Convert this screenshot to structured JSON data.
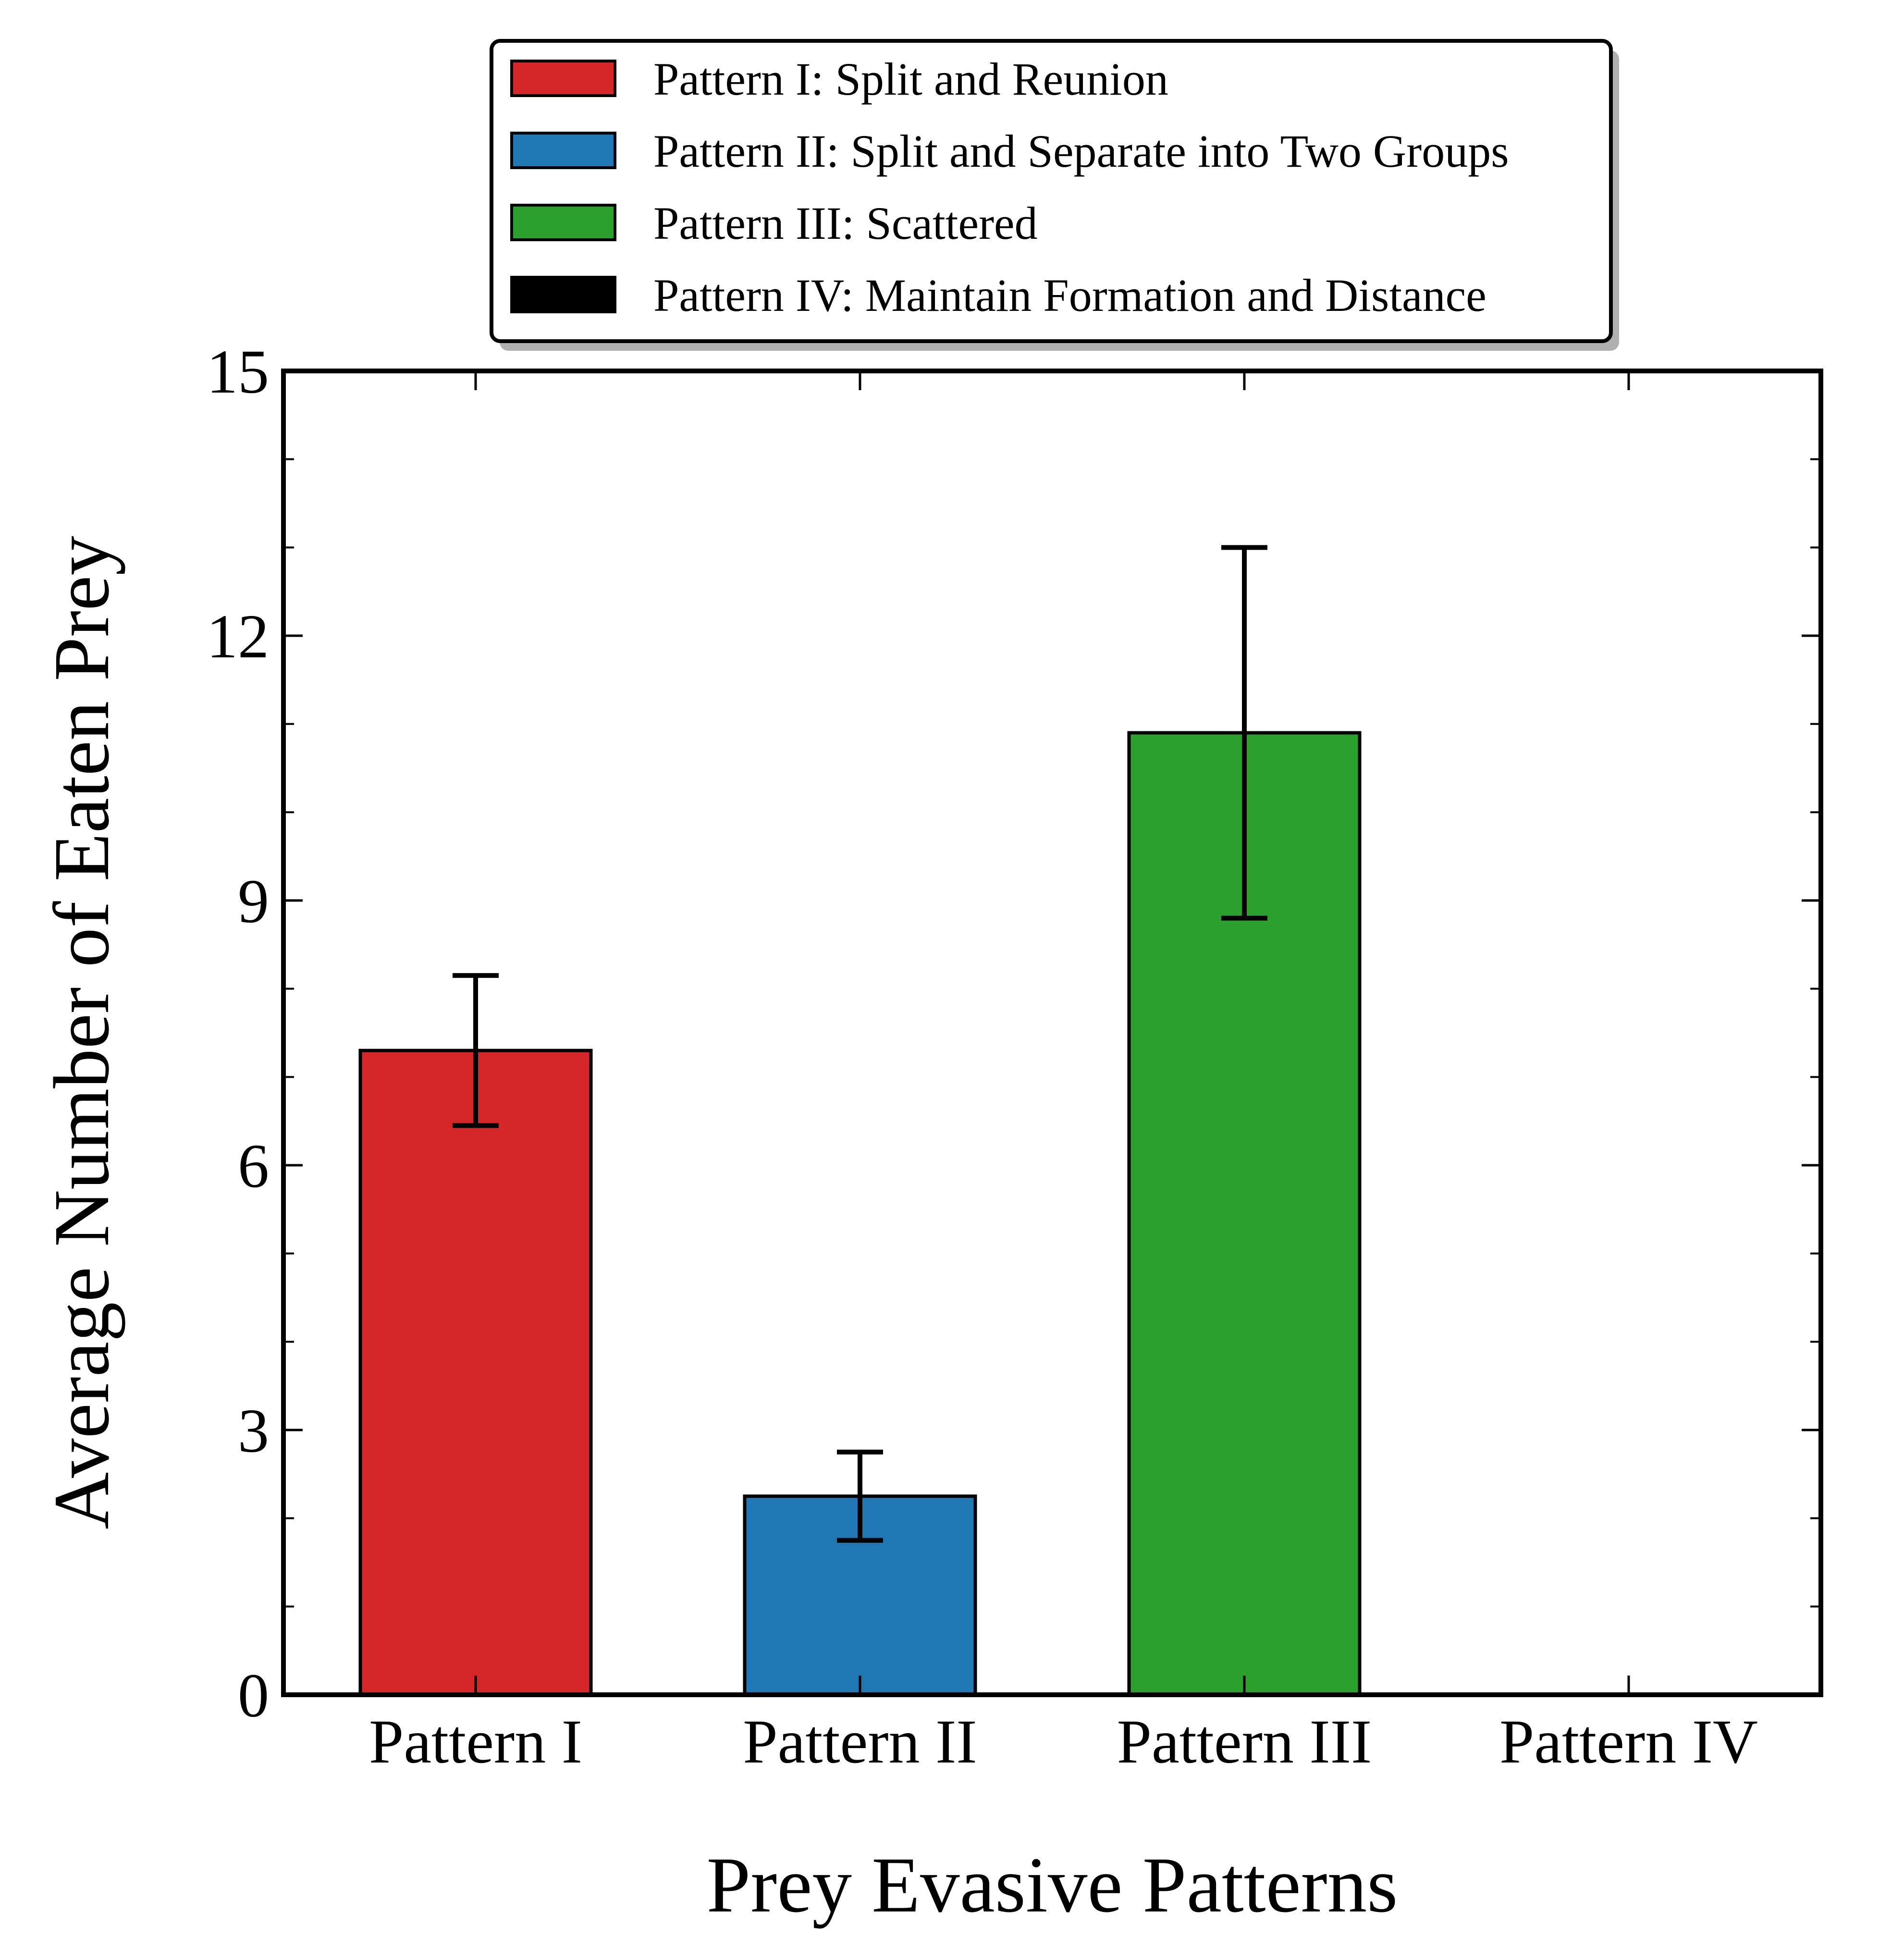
{
  "chart_data": {
    "type": "bar",
    "xlabel": "Prey Evasive Patterns",
    "ylabel": "Average Number of Eaten Prey",
    "ylim": [
      0,
      15
    ],
    "yticks": [
      0,
      3,
      6,
      9,
      12,
      15
    ],
    "yminor_step": 1,
    "categories": [
      "Pattern I",
      "Pattern II",
      "Pattern III",
      "Pattern IV"
    ],
    "values": [
      7.3,
      2.25,
      10.9,
      0
    ],
    "error_low": [
      6.45,
      1.75,
      8.8,
      0
    ],
    "error_high": [
      8.15,
      2.75,
      13.0,
      0
    ],
    "colors": [
      "#d62728",
      "#1f77b4",
      "#2ca02c",
      "#000000"
    ],
    "legend": {
      "position": "top-center",
      "entries": [
        "Pattern I: Split and Reunion",
        "Pattern II: Split and Separate into Two Groups",
        "Pattern III: Scattered",
        "Pattern IV: Maintain Formation and Distance"
      ]
    },
    "grid": false
  }
}
